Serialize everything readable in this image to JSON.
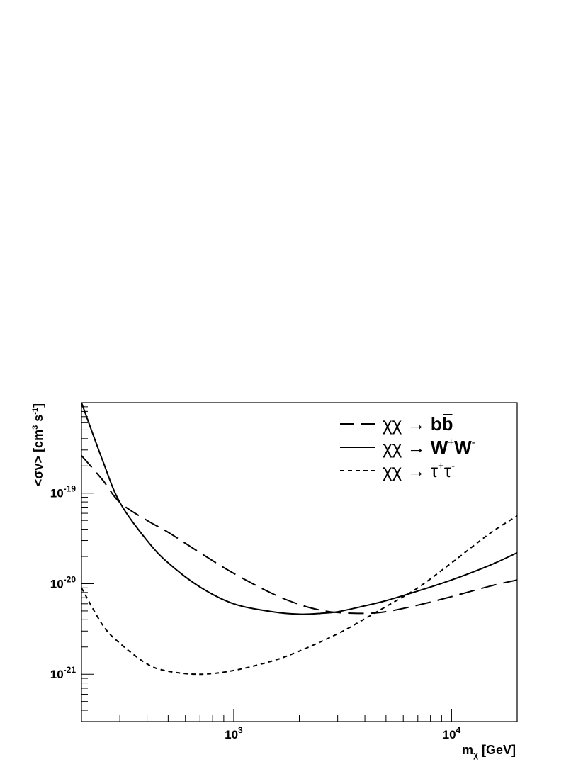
{
  "chart_data": {
    "type": "line",
    "title": "",
    "xlabel_main": "m",
    "xlabel_sub": "χ",
    "xlabel_unit": " [GeV]",
    "ylabel_main": "<σv> [cm",
    "ylabel_sup1": "3",
    "ylabel_mid": " s",
    "ylabel_sup2": "-1",
    "ylabel_end": "]",
    "xscale": "log",
    "yscale": "log",
    "xlim": [
      200,
      20000
    ],
    "ylim": [
      3e-22,
      1e-18
    ],
    "x_ticks": [
      {
        "base": "10",
        "exp": "3",
        "value": 1000
      },
      {
        "base": "10",
        "exp": "4",
        "value": 10000
      }
    ],
    "y_ticks": [
      {
        "base": "10",
        "exp": "-19",
        "value": 1e-19
      },
      {
        "base": "10",
        "exp": "-20",
        "value": 1e-20
      },
      {
        "base": "10",
        "exp": "-21",
        "value": 1e-21
      }
    ],
    "grid": false,
    "legend_position": "top-right",
    "series": [
      {
        "name": "bb",
        "legend_prefix": "χχ → ",
        "legend_main": "bb",
        "legend_sup1": "",
        "legend_mid": "",
        "legend_sup2": "",
        "style": "long-dash",
        "x": [
          200,
          250,
          300,
          400,
          500,
          700,
          1000,
          1500,
          2000,
          2500,
          3000,
          4000,
          5000,
          7000,
          10000,
          15000,
          20000
        ],
        "y": [
          2.6e-19,
          1.4e-19,
          7.9e-20,
          5e-20,
          3.7e-20,
          2.2e-20,
          1.3e-20,
          7.8e-21,
          5.9e-21,
          5.1e-21,
          4.8e-21,
          4.7e-21,
          4.9e-21,
          5.8e-21,
          7.2e-21,
          9.4e-21,
          1.1e-20
        ]
      },
      {
        "name": "W+W-",
        "legend_prefix": "χχ → ",
        "legend_main": "W",
        "legend_sup1": "+",
        "legend_mid": "W",
        "legend_sup2": "-",
        "style": "solid",
        "x": [
          200,
          250,
          300,
          400,
          500,
          700,
          1000,
          1500,
          2000,
          2500,
          3000,
          4000,
          5000,
          7000,
          10000,
          15000,
          20000
        ],
        "y": [
          1e-18,
          2.3e-19,
          7.9e-20,
          3e-20,
          1.7e-20,
          9.2e-21,
          6e-21,
          4.9e-21,
          4.6e-21,
          4.7e-21,
          4.9e-21,
          5.7e-21,
          6.5e-21,
          8.3e-21,
          1.1e-20,
          1.6e-20,
          2.2e-20
        ]
      },
      {
        "name": "τ+τ-",
        "legend_prefix": "χχ → ",
        "legend_main": "τ",
        "legend_sup1": "+",
        "legend_mid": "τ",
        "legend_sup2": "-",
        "style": "short-dash",
        "x": [
          200,
          250,
          300,
          400,
          500,
          700,
          1000,
          1500,
          2000,
          3000,
          4000,
          5000,
          7000,
          10000,
          15000,
          20000
        ],
        "y": [
          9e-21,
          3.5e-21,
          2.2e-21,
          1.3e-21,
          1.08e-21,
          1e-21,
          1.1e-21,
          1.4e-21,
          1.8e-21,
          2.8e-21,
          4.1e-21,
          5.6e-21,
          9e-21,
          1.7e-20,
          3.6e-20,
          5.6e-20
        ]
      }
    ]
  }
}
